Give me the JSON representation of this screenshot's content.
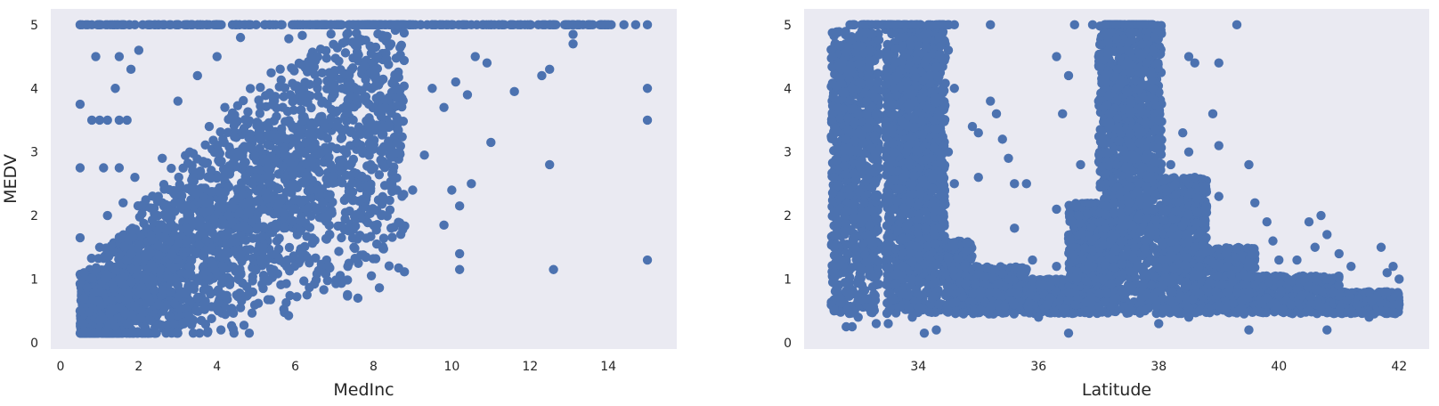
{
  "chart_data": [
    {
      "type": "scatter",
      "title": "",
      "xlabel": "MedInc",
      "ylabel": "MEDV",
      "xlim": [
        -0.25,
        15.75
      ],
      "ylim": [
        -0.1,
        5.25
      ],
      "xticks": [
        "0",
        "2",
        "4",
        "6",
        "8",
        "10",
        "12",
        "14"
      ],
      "yticks": [
        "0",
        "1",
        "2",
        "3",
        "4",
        "5"
      ],
      "grid": false,
      "marker_color": "#4c72b0",
      "background_color": "#eaeaf2",
      "series": [
        {
          "name": "",
          "points": [
            [
              0.5,
              5.0
            ],
            [
              0.8,
              5.0
            ],
            [
              1.0,
              5.0
            ],
            [
              1.2,
              5.0
            ],
            [
              1.6,
              5.0
            ],
            [
              1.9,
              5.0
            ],
            [
              2.1,
              5.0
            ],
            [
              2.5,
              5.0
            ],
            [
              3.0,
              5.0
            ],
            [
              3.5,
              5.0
            ],
            [
              4.0,
              5.0
            ],
            [
              4.5,
              5.0
            ],
            [
              5.0,
              5.0
            ],
            [
              5.5,
              5.0
            ],
            [
              6.0,
              5.0
            ],
            [
              6.5,
              5.0
            ],
            [
              7.0,
              5.0
            ],
            [
              7.5,
              5.0
            ],
            [
              8.0,
              5.0
            ],
            [
              8.5,
              5.0
            ],
            [
              9.0,
              5.0
            ],
            [
              9.5,
              5.0
            ],
            [
              10.0,
              5.0
            ],
            [
              10.5,
              5.0
            ],
            [
              11.0,
              5.0
            ],
            [
              11.5,
              5.0
            ],
            [
              12.0,
              5.0
            ],
            [
              12.5,
              5.0
            ],
            [
              13.0,
              5.0
            ],
            [
              13.5,
              5.0
            ],
            [
              13.9,
              5.0
            ],
            [
              14.4,
              5.0
            ],
            [
              14.7,
              5.0
            ],
            [
              15.0,
              5.0
            ],
            [
              0.5,
              1.65
            ],
            [
              0.6,
              1.1
            ],
            [
              0.6,
              0.7
            ],
            [
              0.5,
              0.5
            ],
            [
              0.6,
              0.3
            ],
            [
              0.6,
              0.17
            ],
            [
              0.5,
              3.75
            ],
            [
              0.5,
              2.75
            ],
            [
              0.8,
              3.5
            ],
            [
              1.0,
              3.5
            ],
            [
              1.2,
              3.5
            ],
            [
              1.5,
              3.5
            ],
            [
              1.7,
              3.5
            ],
            [
              0.9,
              4.5
            ],
            [
              1.5,
              4.5
            ],
            [
              1.8,
              4.3
            ],
            [
              2.0,
              4.6
            ],
            [
              1.4,
              4.0
            ],
            [
              1.1,
              2.75
            ],
            [
              1.5,
              2.75
            ],
            [
              1.9,
              2.6
            ],
            [
              1.2,
              2.0
            ],
            [
              1.6,
              2.2
            ],
            [
              1.0,
              1.5
            ],
            [
              1.8,
              1.4
            ],
            [
              2.2,
              1.8
            ],
            [
              2.5,
              2.3
            ],
            [
              2.8,
              1.6
            ],
            [
              1.5,
              1.0
            ],
            [
              2.2,
              1.0
            ],
            [
              2.8,
              1.0
            ],
            [
              3.3,
              1.2
            ],
            [
              1.5,
              0.7
            ],
            [
              2.0,
              0.8
            ],
            [
              2.5,
              0.6
            ],
            [
              3.0,
              0.9
            ],
            [
              3.5,
              0.7
            ],
            [
              4.0,
              0.8
            ],
            [
              4.5,
              0.75
            ],
            [
              1.7,
              0.3
            ],
            [
              2.3,
              0.35
            ],
            [
              2.8,
              0.4
            ],
            [
              3.4,
              0.35
            ],
            [
              4.1,
              0.2
            ],
            [
              4.6,
              0.55
            ],
            [
              3.2,
              1.8
            ],
            [
              3.8,
              2.2
            ],
            [
              4.3,
              2.0
            ],
            [
              4.9,
              2.5
            ],
            [
              5.4,
              2.9
            ],
            [
              5.8,
              3.2
            ],
            [
              6.2,
              3.5
            ],
            [
              6.7,
              3.8
            ],
            [
              7.2,
              4.0
            ],
            [
              7.7,
              4.3
            ],
            [
              8.1,
              4.5
            ],
            [
              3.3,
              3.0
            ],
            [
              3.8,
              3.4
            ],
            [
              4.2,
              3.7
            ],
            [
              2.6,
              2.9
            ],
            [
              3.0,
              3.8
            ],
            [
              3.5,
              4.2
            ],
            [
              4.0,
              4.5
            ],
            [
              4.6,
              4.8
            ],
            [
              4.6,
              1.1
            ],
            [
              5.1,
              1.5
            ],
            [
              5.5,
              1.8
            ],
            [
              6.0,
              2.1
            ],
            [
              6.4,
              2.4
            ],
            [
              6.9,
              2.8
            ],
            [
              7.4,
              3.1
            ],
            [
              7.9,
              3.4
            ],
            [
              8.3,
              3.7
            ],
            [
              5.2,
              1.0
            ],
            [
              5.8,
              1.3
            ],
            [
              6.3,
              0.75
            ],
            [
              6.8,
              1.3
            ],
            [
              7.5,
              1.5
            ],
            [
              7.6,
              0.7
            ],
            [
              8.2,
              2.0
            ],
            [
              8.6,
              2.4
            ],
            [
              9.0,
              2.4
            ],
            [
              9.3,
              2.95
            ],
            [
              9.5,
              4.0
            ],
            [
              9.8,
              3.7
            ],
            [
              10.1,
              4.1
            ],
            [
              10.4,
              3.9
            ],
            [
              10.6,
              4.5
            ],
            [
              10.9,
              4.4
            ],
            [
              9.8,
              1.85
            ],
            [
              10.0,
              2.4
            ],
            [
              10.2,
              2.15
            ],
            [
              10.5,
              2.5
            ],
            [
              10.2,
              1.15
            ],
            [
              10.2,
              1.4
            ],
            [
              11.0,
              3.15
            ],
            [
              11.6,
              3.95
            ],
            [
              12.3,
              4.2
            ],
            [
              12.5,
              4.3
            ],
            [
              12.5,
              2.8
            ],
            [
              12.6,
              1.15
            ],
            [
              13.1,
              4.85
            ],
            [
              13.1,
              4.7
            ],
            [
              15.0,
              4.0
            ],
            [
              15.0,
              3.5
            ],
            [
              15.0,
              1.3
            ]
          ]
        }
      ]
    },
    {
      "type": "scatter",
      "title": "",
      "xlabel": "Latitude",
      "ylabel": "",
      "xlim": [
        32.1,
        42.5
      ],
      "ylim": [
        -0.1,
        5.25
      ],
      "xticks": [
        "34",
        "36",
        "38",
        "40",
        "42"
      ],
      "yticks": [
        "0",
        "1",
        "2",
        "3",
        "4",
        "5"
      ],
      "grid": false,
      "marker_color": "#4c72b0",
      "background_color": "#eaeaf2",
      "series": [
        {
          "name": "",
          "points": [
            [
              32.6,
              2.6
            ],
            [
              32.6,
              1.5
            ],
            [
              32.6,
              1.1
            ],
            [
              32.7,
              0.7
            ],
            [
              32.8,
              3.2
            ],
            [
              32.9,
              4.0
            ],
            [
              33.0,
              4.8
            ],
            [
              32.9,
              5.0
            ],
            [
              33.1,
              5.0
            ],
            [
              33.2,
              4.6
            ],
            [
              33.3,
              3.6
            ],
            [
              33.1,
              2.2
            ],
            [
              33.2,
              1.6
            ],
            [
              33.0,
              0.4
            ],
            [
              32.8,
              0.25
            ],
            [
              32.9,
              0.25
            ],
            [
              33.3,
              0.3
            ],
            [
              33.5,
              0.3
            ],
            [
              33.5,
              5.0
            ],
            [
              33.6,
              5.0
            ],
            [
              33.7,
              4.8
            ],
            [
              33.6,
              4.0
            ],
            [
              33.8,
              3.0
            ],
            [
              33.9,
              2.5
            ],
            [
              33.9,
              1.0
            ],
            [
              33.9,
              0.4
            ],
            [
              34.1,
              0.15
            ],
            [
              34.3,
              0.2
            ],
            [
              34.0,
              5.0
            ],
            [
              34.2,
              5.0
            ],
            [
              34.4,
              5.0
            ],
            [
              34.6,
              5.0
            ],
            [
              34.5,
              4.6
            ],
            [
              34.6,
              4.0
            ],
            [
              34.5,
              3.0
            ],
            [
              34.6,
              2.5
            ],
            [
              34.6,
              1.5
            ],
            [
              34.9,
              3.4
            ],
            [
              35.0,
              3.3
            ],
            [
              35.0,
              2.6
            ],
            [
              35.2,
              3.8
            ],
            [
              35.3,
              3.6
            ],
            [
              35.4,
              3.2
            ],
            [
              35.5,
              2.9
            ],
            [
              35.6,
              2.5
            ],
            [
              35.6,
              1.8
            ],
            [
              35.5,
              1.0
            ],
            [
              35.6,
              0.6
            ],
            [
              35.8,
              2.5
            ],
            [
              35.2,
              5.0
            ],
            [
              35.9,
              1.3
            ],
            [
              35.9,
              1.0
            ],
            [
              36.0,
              0.4
            ],
            [
              36.2,
              0.7
            ],
            [
              36.3,
              2.1
            ],
            [
              36.3,
              1.2
            ],
            [
              36.5,
              0.15
            ],
            [
              36.5,
              0.8
            ],
            [
              36.5,
              4.2
            ],
            [
              36.4,
              3.6
            ],
            [
              36.3,
              4.5
            ],
            [
              36.7,
              2.8
            ],
            [
              36.6,
              5.0
            ],
            [
              36.9,
              5.0
            ],
            [
              37.0,
              4.5
            ],
            [
              37.0,
              3.8
            ],
            [
              37.2,
              3.4
            ],
            [
              37.3,
              2.8
            ],
            [
              37.1,
              5.0
            ],
            [
              37.3,
              5.0
            ],
            [
              37.5,
              5.0
            ],
            [
              37.7,
              5.0
            ],
            [
              37.9,
              5.0
            ],
            [
              37.8,
              4.4
            ],
            [
              37.9,
              4.0
            ],
            [
              38.0,
              3.5
            ],
            [
              37.6,
              1.5
            ],
            [
              37.4,
              0.8
            ],
            [
              37.7,
              0.5
            ],
            [
              38.0,
              0.3
            ],
            [
              38.2,
              2.8
            ],
            [
              38.4,
              3.3
            ],
            [
              38.5,
              3.0
            ],
            [
              38.6,
              2.6
            ],
            [
              38.5,
              4.5
            ],
            [
              38.6,
              4.4
            ],
            [
              38.9,
              3.6
            ],
            [
              39.0,
              3.1
            ],
            [
              39.0,
              2.3
            ],
            [
              38.6,
              1.5
            ],
            [
              38.5,
              0.4
            ],
            [
              39.0,
              4.4
            ],
            [
              39.3,
              5.0
            ],
            [
              39.5,
              2.8
            ],
            [
              39.6,
              2.2
            ],
            [
              39.8,
              1.9
            ],
            [
              39.6,
              1.4
            ],
            [
              39.5,
              0.8
            ],
            [
              39.5,
              0.2
            ],
            [
              39.9,
              1.6
            ],
            [
              40.0,
              1.3
            ],
            [
              40.3,
              1.3
            ],
            [
              40.5,
              1.9
            ],
            [
              40.6,
              1.5
            ],
            [
              40.7,
              2.0
            ],
            [
              40.8,
              1.7
            ],
            [
              40.8,
              1.0
            ],
            [
              40.5,
              0.5
            ],
            [
              40.8,
              0.2
            ],
            [
              41.0,
              1.4
            ],
            [
              41.2,
              1.2
            ],
            [
              41.0,
              0.9
            ],
            [
              41.3,
              0.6
            ],
            [
              41.5,
              0.8
            ],
            [
              41.5,
              0.4
            ],
            [
              41.7,
              0.5
            ],
            [
              41.7,
              1.5
            ],
            [
              41.8,
              1.1
            ],
            [
              41.9,
              1.2
            ],
            [
              41.9,
              0.6
            ],
            [
              41.8,
              0.8
            ],
            [
              42.0,
              1.0
            ],
            [
              42.0,
              0.6
            ],
            [
              40.9,
              0.8
            ],
            [
              40.2,
              0.6
            ],
            [
              39.8,
              0.7
            ]
          ]
        }
      ]
    }
  ]
}
